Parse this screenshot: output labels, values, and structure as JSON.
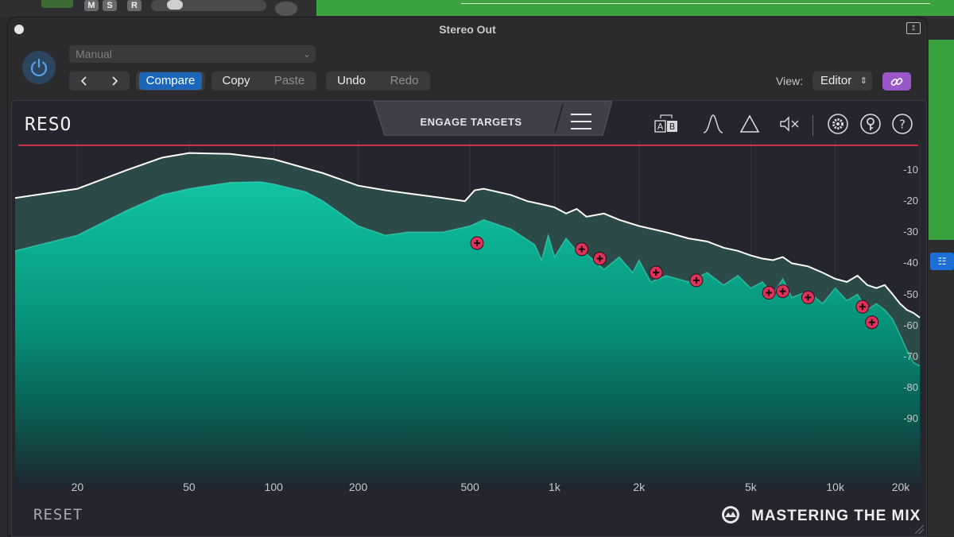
{
  "daw": {
    "mute_label": "M",
    "solo_label": "S",
    "record_label": "R"
  },
  "window": {
    "title": "Stereo Out"
  },
  "header": {
    "preset": "Manual",
    "compare_label": "Compare",
    "copy_label": "Copy",
    "paste_label": "Paste",
    "undo_label": "Undo",
    "redo_label": "Redo",
    "view_label": "View:",
    "view_value": "Editor"
  },
  "plugin": {
    "name": "RESO",
    "engage_label": "ENGAGE TARGETS",
    "reset_label": "RESET",
    "brand": "MASTERING THE MIX",
    "toolbar_icons": [
      "ab-compare-icon",
      "bell-filter-icon",
      "delta-icon",
      "mute-speaker-icon",
      "settings-icon",
      "key-help-icon",
      "question-icon"
    ]
  },
  "chart_data": {
    "type": "area",
    "xscale": "log",
    "xlim": [
      12,
      20000
    ],
    "ylim": [
      -100,
      0
    ],
    "threshold_db": -2,
    "y_ticks": [
      {
        "label": "-10",
        "value": -10
      },
      {
        "label": "-20",
        "value": -20
      },
      {
        "label": "-30",
        "value": -30
      },
      {
        "label": "-40",
        "value": -40
      },
      {
        "label": "-50",
        "value": -50
      },
      {
        "label": "-60",
        "value": -60
      },
      {
        "label": "-70",
        "value": -70
      },
      {
        "label": "-80",
        "value": -80
      },
      {
        "label": "-90",
        "value": -90
      }
    ],
    "x_ticks": [
      {
        "label": "20",
        "value": 20
      },
      {
        "label": "50",
        "value": 50
      },
      {
        "label": "100",
        "value": 100
      },
      {
        "label": "200",
        "value": 200
      },
      {
        "label": "500",
        "value": 500
      },
      {
        "label": "1k",
        "value": 1000
      },
      {
        "label": "2k",
        "value": 2000
      },
      {
        "label": "5k",
        "value": 5000
      },
      {
        "label": "10k",
        "value": 10000
      },
      {
        "label": "20k",
        "value": 20000
      }
    ],
    "series": [
      {
        "x": [
          12,
          20,
          30,
          40,
          50,
          70,
          100,
          150,
          200,
          250,
          300,
          400,
          480,
          520,
          560,
          700,
          800,
          900,
          1000,
          1100,
          1200,
          1300,
          1500,
          1700,
          2000,
          2500,
          3000,
          3500,
          4000,
          4500,
          5000,
          5500,
          6000,
          6500,
          7000,
          8000,
          9000,
          10000,
          11000,
          12000,
          13000,
          14000,
          15000,
          16000,
          17000,
          18000,
          19000,
          20000
        ],
        "values": [
          -19,
          -16,
          -10,
          -6,
          -4.5,
          -4.8,
          -6.5,
          -11,
          -15,
          -16.5,
          -17.5,
          -19,
          -20,
          -16.5,
          -16,
          -18,
          -20,
          -21,
          -22,
          -24,
          -22.5,
          -25,
          -24,
          -26,
          -28,
          -30,
          -32,
          -33,
          -35,
          -36,
          -37.5,
          -38.5,
          -39,
          -38,
          -40,
          -41,
          -43,
          -45,
          -46,
          -44,
          -47,
          -48,
          -47,
          -50,
          -53,
          -55,
          -56,
          -57.5
        ]
      },
      {
        "x": [
          12,
          20,
          30,
          40,
          50,
          70,
          90,
          100,
          130,
          150,
          200,
          250,
          300,
          400,
          500,
          560,
          700,
          850,
          900,
          950,
          1000,
          1100,
          1200,
          1300,
          1500,
          1700,
          1900,
          2000,
          2200,
          2500,
          3000,
          3500,
          4000,
          4500,
          5000,
          5500,
          6000,
          6500,
          7000,
          8000,
          9000,
          10000,
          11000,
          12000,
          13000,
          14000,
          15000,
          16000,
          17000,
          18000,
          19000,
          20000
        ],
        "values": [
          -36,
          -31,
          -23,
          -18,
          -16,
          -14,
          -13.8,
          -14.5,
          -17,
          -20,
          -28,
          -31,
          -30,
          -30,
          -28,
          -26,
          -29,
          -34,
          -39,
          -31,
          -38,
          -32,
          -36,
          -37,
          -42,
          -38,
          -43,
          -39,
          -46,
          -44,
          -46,
          -43,
          -47,
          -44,
          -48,
          -46,
          -50,
          -45,
          -51,
          -49,
          -53,
          -48,
          -52,
          -50,
          -55,
          -53,
          -55,
          -58,
          -63,
          -68,
          -72,
          -73
        ]
      }
    ],
    "markers": [
      {
        "x": 530,
        "y": -33.5
      },
      {
        "x": 1250,
        "y": -35.5
      },
      {
        "x": 1450,
        "y": -38.5
      },
      {
        "x": 2300,
        "y": -43
      },
      {
        "x": 3200,
        "y": -45.5
      },
      {
        "x": 5800,
        "y": -49.5
      },
      {
        "x": 6500,
        "y": -49
      },
      {
        "x": 8000,
        "y": -51
      },
      {
        "x": 12500,
        "y": -54
      },
      {
        "x": 13500,
        "y": -59
      }
    ]
  }
}
